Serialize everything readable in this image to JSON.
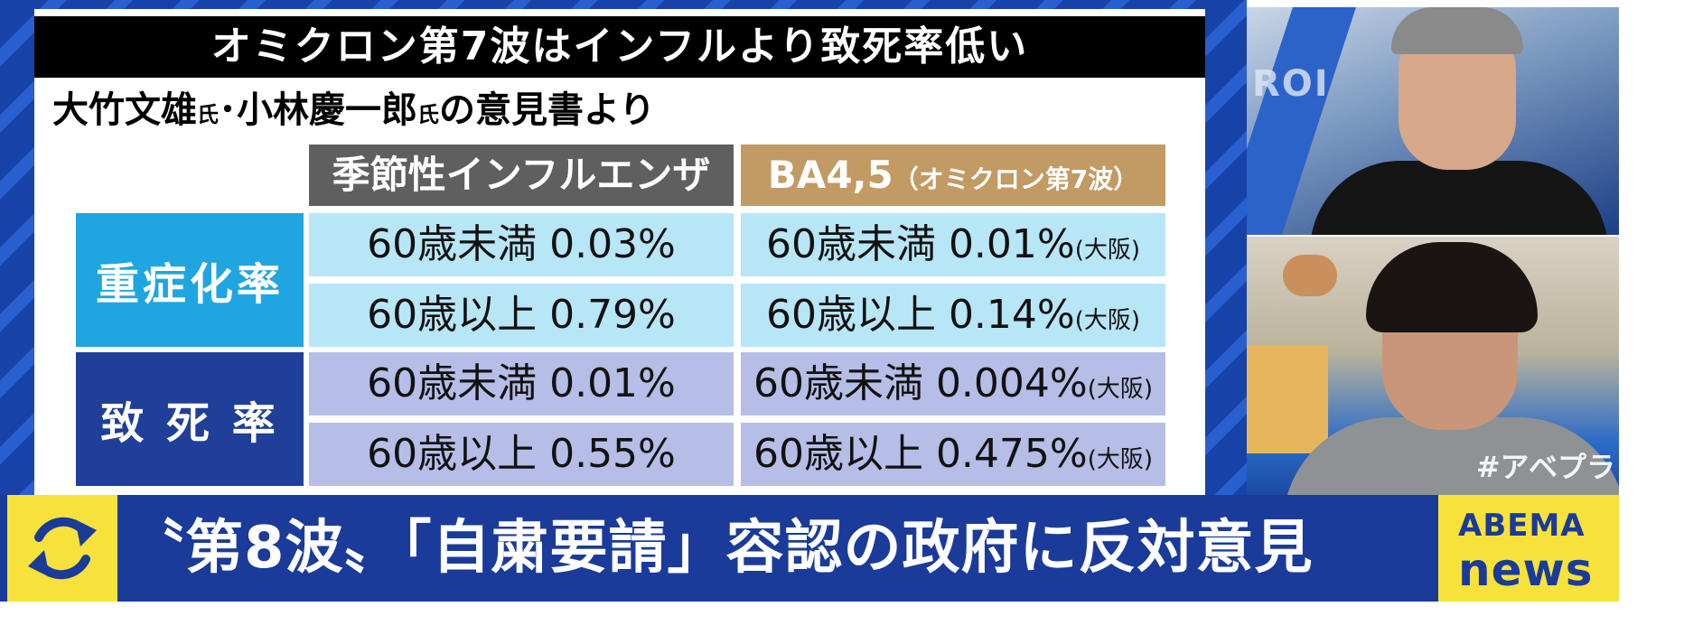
{
  "panel": {
    "title": "オミクロン第7波はインフルより致死率低い",
    "subtitle": {
      "name1": "大竹文雄",
      "honor1": "氏",
      "sep": "･",
      "name2": "小林慶一郎",
      "honor2": "氏",
      "rest": "の意見書より"
    },
    "headers": {
      "flu": "季節性インフルエンザ",
      "ba_main": "BA4,5",
      "ba_note": "（オミクロン第7波）"
    },
    "rows": [
      {
        "label": "重症化率",
        "flu": "60歳未満 0.03%",
        "ba": "60歳未満 0.01%",
        "ba_note": "(大阪)"
      },
      {
        "flu": "60歳以上 0.79%",
        "ba": "60歳以上 0.14%",
        "ba_note": "(大阪)"
      },
      {
        "label": "致死率",
        "flu": "60歳未満 0.01%",
        "ba": "60歳未満 0.004%",
        "ba_note": "(大阪)"
      },
      {
        "flu": "60歳以上 0.55%",
        "ba": "60歳以上 0.475%",
        "ba_note": "(大阪)"
      }
    ],
    "death_label": "致 死 率"
  },
  "camera": {
    "bg_text": "ROI",
    "hashtag": "#アベプラ"
  },
  "ticker": {
    "headline": "〝第8波〟「自粛要請」容認の政府に反対意見",
    "brand_line1": "ABEMA",
    "brand_line2": "news"
  },
  "colors": {
    "studio_blue": "#1742a8",
    "ticker_blue": "#1a3b9a",
    "accent_yellow": "#f6e23a",
    "severe_label": "#1fa6e0",
    "death_label": "#1f3f99",
    "severe_cell": "#b7e6f6",
    "death_cell": "#b6bde6",
    "flu_header": "#5f5f5f",
    "ba_header": "#c29a64"
  },
  "icons": {
    "ticker_icon": "refresh-arrows-icon"
  }
}
